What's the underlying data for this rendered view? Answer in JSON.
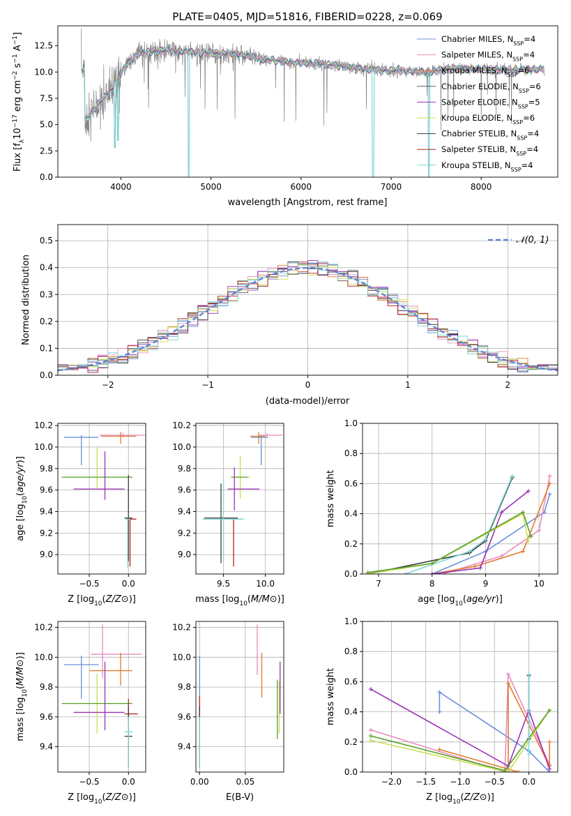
{
  "colors": {
    "chabrier_miles": "#6a8fdb",
    "salpeter_miles": "#e88bbd",
    "kroupa_miles": "#e07b2e",
    "chabrier_elodie": "#5c5c5c",
    "salpeter_elodie": "#9b2fb5",
    "kroupa_elodie": "#c8df52",
    "chabrier_stelib": "#3b3b3b",
    "salpeter_stelib": "#b0211d",
    "kroupa_stelib": "#7fd6d6",
    "data": "#7f7f7f",
    "normal": "#5b86d6",
    "green": "#5aa02c"
  },
  "chart_data": [
    {
      "id": "spectrum",
      "type": "line",
      "title": "PLATE=0405, MJD=51816, FIBERID=0228, z=0.069",
      "xlabel": "wavelength [Angstrom, rest frame]",
      "ylabel_parts": [
        "Flux [f",
        "λ",
        "10",
        "−17",
        " erg cm",
        "−2",
        " s",
        "−1",
        " A",
        "−1",
        "]"
      ],
      "xlim": [
        3300,
        8850
      ],
      "ylim": [
        0,
        14.4
      ],
      "xticks": [
        4000,
        5000,
        6000,
        7000,
        8000
      ],
      "yticks": [
        0.0,
        2.5,
        5.0,
        7.5,
        10.0,
        12.5
      ],
      "legend": [
        {
          "name": "Chabrier MILES, N",
          "sub": "SSP",
          "n": "=4",
          "color": "chabrier_miles"
        },
        {
          "name": "Salpeter MILES, N",
          "sub": "SSP",
          "n": "=4",
          "color": "salpeter_miles"
        },
        {
          "name": "Kroupa MILES, N",
          "sub": "SSP",
          "n": "=6",
          "color": "kroupa_miles"
        },
        {
          "name": "Chabrier ELODIE, N",
          "sub": "SSP",
          "n": "=6",
          "color": "chabrier_elodie"
        },
        {
          "name": "Salpeter ELODIE, N",
          "sub": "SSP",
          "n": "=5",
          "color": "salpeter_elodie"
        },
        {
          "name": "Kroupa ELODIE, N",
          "sub": "SSP",
          "n": "=6",
          "color": "kroupa_elodie"
        },
        {
          "name": "Chabrier STELIB, N",
          "sub": "SSP",
          "n": "=4",
          "color": "chabrier_stelib"
        },
        {
          "name": "Salpeter STELIB, N",
          "sub": "SSP",
          "n": "=4",
          "color": "salpeter_stelib"
        },
        {
          "name": "Kroupa STELIB, N",
          "sub": "SSP",
          "n": "=4",
          "color": "kroupa_stelib"
        }
      ],
      "continuum": [
        [
          3600,
          5.2
        ],
        [
          3700,
          6.5
        ],
        [
          3850,
          7.8
        ],
        [
          3950,
          9.0
        ],
        [
          4050,
          10.6
        ],
        [
          4200,
          11.8
        ],
        [
          4400,
          12.0
        ],
        [
          4600,
          12.0
        ],
        [
          4800,
          11.9
        ],
        [
          5000,
          11.8
        ],
        [
          5300,
          11.7
        ],
        [
          5600,
          11.2
        ],
        [
          5900,
          10.9
        ],
        [
          6200,
          10.8
        ],
        [
          6500,
          10.5
        ],
        [
          6800,
          10.2
        ],
        [
          7100,
          10.1
        ],
        [
          7400,
          10.0
        ],
        [
          7700,
          10.3
        ],
        [
          8000,
          10.3
        ],
        [
          8300,
          10.2
        ],
        [
          8700,
          10.3
        ]
      ],
      "dips": [
        [
          3933,
          2.8
        ],
        [
          3968,
          3.5
        ],
        [
          4750,
          0.0
        ],
        [
          6800,
          0.0
        ],
        [
          7420,
          0.0
        ]
      ]
    },
    {
      "id": "residuals",
      "type": "step",
      "xlabel": "(data-model)/error",
      "ylabel": "Normed distribution",
      "xlim": [
        -2.5,
        2.5
      ],
      "ylim": [
        0,
        0.56
      ],
      "xticks": [
        -2,
        -1,
        0,
        1,
        2
      ],
      "yticks": [
        0.0,
        0.1,
        0.2,
        0.3,
        0.4,
        0.5
      ],
      "legend_label": "𝒩(0, 1)"
    },
    {
      "id": "age_vs_z",
      "type": "errorbar",
      "xlabel": "Z [log10(Z/Z⊙)]",
      "ylabel": "age [log10(age/yr)]",
      "xlim": [
        -0.9,
        0.22
      ],
      "ylim": [
        8.82,
        10.22
      ],
      "xticks": [
        -0.5,
        0.0
      ],
      "yticks": [
        9.0,
        9.2,
        9.4,
        9.6,
        9.8,
        10.0,
        10.2
      ],
      "points": [
        {
          "c": "chabrier_miles",
          "x": -0.6,
          "xe": [
            0.22,
            0.22
          ],
          "y": 10.09,
          "ye": [
            0.26,
            0.02
          ]
        },
        {
          "c": "salpeter_miles",
          "x": -0.07,
          "xe": [
            0.3,
            0.28
          ],
          "y": 10.11,
          "ye": [
            0.02,
            0.02
          ]
        },
        {
          "c": "kroupa_miles",
          "x": -0.1,
          "xe": [
            0.25,
            0.2
          ],
          "y": 10.1,
          "ye": [
            0.07,
            0.04
          ]
        },
        {
          "c": "kroupa_elodie",
          "x": -0.4,
          "xe": [
            0.45,
            0.45
          ],
          "y": 9.72,
          "ye": [
            0.1,
            0.28
          ]
        },
        {
          "c": "green",
          "x": -0.4,
          "xe": [
            0.45,
            0.45
          ],
          "y": 9.72,
          "ye": [
            0.0,
            0.0
          ]
        },
        {
          "c": "salpeter_elodie",
          "x": -0.3,
          "xe": [
            0.4,
            0.25
          ],
          "y": 9.61,
          "ye": [
            0.1,
            0.35
          ]
        },
        {
          "c": "chabrier_stelib",
          "x": 0.0,
          "xe": [
            0.05,
            0.05
          ],
          "y": 9.34,
          "ye": [
            0.4,
            0.4
          ]
        },
        {
          "c": "salpeter_stelib",
          "x": 0.02,
          "xe": [
            0.05,
            0.08
          ],
          "y": 9.33,
          "ye": [
            0.44,
            0.0
          ]
        },
        {
          "c": "kroupa_stelib",
          "x": -0.01,
          "xe": [
            0.03,
            0.03
          ],
          "y": 9.33,
          "ye": [
            0.45,
            0.0
          ]
        }
      ]
    },
    {
      "id": "age_vs_mass",
      "type": "errorbar",
      "xlabel": "mass [log10(M/M⊙)]",
      "xlim": [
        9.17,
        10.22
      ],
      "ylim": [
        8.82,
        10.22
      ],
      "xticks": [
        9.5,
        10.0
      ],
      "yticks": [
        9.0,
        9.2,
        9.4,
        9.6,
        9.8,
        10.0,
        10.2
      ],
      "points": [
        {
          "c": "chabrier_miles",
          "x": 9.95,
          "xe": [
            0.12,
            0.08
          ],
          "y": 10.09,
          "ye": [
            0.26,
            0.02
          ]
        },
        {
          "c": "salpeter_miles",
          "x": 10.02,
          "xe": [
            0.1,
            0.18
          ],
          "y": 10.11,
          "ye": [
            0.02,
            0.02
          ]
        },
        {
          "c": "kroupa_miles",
          "x": 9.92,
          "xe": [
            0.1,
            0.08
          ],
          "y": 10.1,
          "ye": [
            0.07,
            0.04
          ]
        },
        {
          "c": "kroupa_elodie",
          "x": 9.7,
          "xe": [
            0.1,
            0.12
          ],
          "y": 9.72,
          "ye": [
            0.2,
            0.2
          ]
        },
        {
          "c": "green",
          "x": 9.69,
          "xe": [
            0.1,
            0.1
          ],
          "y": 9.72,
          "ye": [
            0.0,
            0.0
          ]
        },
        {
          "c": "salpeter_elodie",
          "x": 9.63,
          "xe": [
            0.08,
            0.3
          ],
          "y": 9.61,
          "ye": [
            0.2,
            0.2
          ]
        },
        {
          "c": "chabrier_stelib",
          "x": 9.47,
          "xe": [
            0.2,
            0.2
          ],
          "y": 9.34,
          "ye": [
            0.42,
            0.32
          ]
        },
        {
          "c": "salpeter_stelib",
          "x": 9.62,
          "xe": [
            0.15,
            0.1
          ],
          "y": 9.33,
          "ye": [
            0.44,
            0.0
          ]
        },
        {
          "c": "kroupa_stelib",
          "x": 9.5,
          "xe": [
            0.25,
            0.25
          ],
          "y": 9.33,
          "ye": [
            0.4,
            0.35
          ]
        }
      ]
    },
    {
      "id": "mw_vs_age",
      "type": "line",
      "xlabel": "age [log10(age/yr)]",
      "ylabel": "mass weight",
      "xlim": [
        6.7,
        10.35
      ],
      "ylim": [
        0,
        1.0
      ],
      "xticks": [
        7,
        8,
        9,
        10
      ],
      "yticks": [
        0.0,
        0.2,
        0.4,
        0.6,
        0.8,
        1.0
      ],
      "series": [
        {
          "c": "chabrier_stelib",
          "x": [
            6.8,
            8.7,
            9.0,
            9.5
          ],
          "y": [
            0.0,
            0.14,
            0.22,
            0.64
          ]
        },
        {
          "c": "kroupa_stelib",
          "x": [
            7.5,
            8.7,
            9.0,
            9.5
          ],
          "y": [
            0.0,
            0.15,
            0.23,
            0.65
          ]
        },
        {
          "c": "chabrier_miles",
          "x": [
            8.0,
            9.0,
            10.1,
            10.2
          ],
          "y": [
            0.0,
            0.15,
            0.41,
            0.53
          ]
        },
        {
          "c": "salpeter_miles",
          "x": [
            8.2,
            9.3,
            10.0,
            10.2
          ],
          "y": [
            0.0,
            0.12,
            0.29,
            0.65
          ]
        },
        {
          "c": "kroupa_miles",
          "x": [
            8.0,
            8.8,
            9.7,
            10.2
          ],
          "y": [
            0.0,
            0.05,
            0.15,
            0.6
          ]
        },
        {
          "c": "salpeter_elodie",
          "x": [
            8.0,
            8.9,
            9.3,
            9.8
          ],
          "y": [
            0.0,
            0.04,
            0.41,
            0.55
          ]
        },
        {
          "c": "kroupa_elodie",
          "x": [
            6.8,
            8.0,
            9.7,
            9.8
          ],
          "y": [
            0.0,
            0.07,
            0.4,
            0.22
          ]
        },
        {
          "c": "green",
          "x": [
            6.8,
            8.0,
            9.7,
            9.85
          ],
          "y": [
            0.01,
            0.07,
            0.41,
            0.25
          ]
        }
      ]
    },
    {
      "id": "mass_vs_z",
      "type": "errorbar",
      "xlabel": "Z [log10(Z/Z⊙)]",
      "ylabel": "mass [log10(M/M⊙)]",
      "xlim": [
        -0.9,
        0.22
      ],
      "ylim": [
        9.23,
        10.24
      ],
      "xticks": [
        -0.5,
        0.0
      ],
      "yticks": [
        9.4,
        9.6,
        9.8,
        10.0,
        10.2
      ],
      "points": [
        {
          "c": "chabrier_miles",
          "x": -0.6,
          "xe": [
            0.22,
            0.22
          ],
          "y": 9.95,
          "ye": [
            0.23,
            0.06
          ]
        },
        {
          "c": "salpeter_miles",
          "x": -0.33,
          "xe": [
            0.15,
            0.5
          ],
          "y": 10.02,
          "ye": [
            0.16,
            0.2
          ]
        },
        {
          "c": "kroupa_miles",
          "x": -0.1,
          "xe": [
            0.4,
            0.15
          ],
          "y": 9.91,
          "ye": [
            0.1,
            0.12
          ]
        },
        {
          "c": "kroupa_elodie",
          "x": -0.4,
          "xe": [
            0.45,
            0.45
          ],
          "y": 9.69,
          "ye": [
            0.2,
            0.2
          ]
        },
        {
          "c": "green",
          "x": -0.4,
          "xe": [
            0.45,
            0.45
          ],
          "y": 9.69,
          "ye": [
            0.0,
            0.0
          ]
        },
        {
          "c": "salpeter_elodie",
          "x": -0.3,
          "xe": [
            0.4,
            0.25
          ],
          "y": 9.63,
          "ye": [
            0.12,
            0.34
          ]
        },
        {
          "c": "salpeter_stelib",
          "x": 0.0,
          "xe": [
            0.05,
            0.12
          ],
          "y": 9.62,
          "ye": [
            0.36,
            0.1
          ]
        },
        {
          "c": "chabrier_stelib",
          "x": 0.0,
          "xe": [
            0.05,
            0.05
          ],
          "y": 9.47,
          "ye": [
            0.2,
            0.2
          ]
        },
        {
          "c": "kroupa_stelib",
          "x": 0.0,
          "xe": [
            0.05,
            0.05
          ],
          "y": 9.5,
          "ye": [
            0.24,
            0.1
          ]
        }
      ]
    },
    {
      "id": "mass_vs_ebv",
      "type": "errorbar",
      "xlabel": "E(B-V)",
      "xlim": [
        -0.004,
        0.092
      ],
      "ylim": [
        9.23,
        10.24
      ],
      "xticks": [
        0.0,
        0.05
      ],
      "yticks": [
        9.4,
        9.6,
        9.8,
        10.0,
        10.2
      ],
      "points": [
        {
          "c": "chabrier_miles",
          "x": 0.0,
          "xe": [
            0,
            0
          ],
          "y": 9.95,
          "ye": [
            0.23,
            0.06
          ]
        },
        {
          "c": "salpeter_miles",
          "x": 0.063,
          "xe": [
            0,
            0
          ],
          "y": 10.02,
          "ye": [
            0.14,
            0.2
          ]
        },
        {
          "c": "kroupa_miles",
          "x": 0.068,
          "xe": [
            0,
            0
          ],
          "y": 9.91,
          "ye": [
            0.18,
            0.12
          ]
        },
        {
          "c": "kroupa_elodie",
          "x": 0.087,
          "xe": [
            0,
            0
          ],
          "y": 9.69,
          "ye": [
            0.2,
            0.15
          ]
        },
        {
          "c": "salpeter_elodie",
          "x": 0.088,
          "xe": [
            0,
            0
          ],
          "y": 9.82,
          "ye": [
            0.2,
            0.15
          ]
        },
        {
          "c": "green",
          "x": 0.085,
          "xe": [
            0,
            0
          ],
          "y": 9.65,
          "ye": [
            0.2,
            0.2
          ]
        },
        {
          "c": "salpeter_stelib",
          "x": 0.0,
          "xe": [
            0,
            0
          ],
          "y": 9.62,
          "ye": [
            0.36,
            0.12
          ]
        },
        {
          "c": "chabrier_stelib",
          "x": 0.0,
          "xe": [
            0,
            0
          ],
          "y": 9.47,
          "ye": [
            0.2,
            0.2
          ]
        },
        {
          "c": "kroupa_stelib",
          "x": 0.0,
          "xe": [
            0,
            0
          ],
          "y": 9.5,
          "ye": [
            0.24,
            0.1
          ]
        }
      ]
    },
    {
      "id": "mw_vs_z",
      "type": "line",
      "xlabel": "Z [log10(Z/Z⊙)]",
      "ylabel": "mass weight",
      "xlim": [
        -2.42,
        0.42
      ],
      "ylim": [
        0,
        1.0
      ],
      "xticks": [
        -2.0,
        -1.5,
        -1.0,
        -0.5,
        0.0
      ],
      "yticks": [
        0.0,
        0.2,
        0.4,
        0.6,
        0.8,
        1.0
      ],
      "series": [
        {
          "c": "chabrier_miles",
          "x": [
            -1.3,
            -1.3,
            0.0,
            0.3
          ],
          "y": [
            0.4,
            0.53,
            0.14,
            0.0
          ]
        },
        {
          "c": "salpeter_miles",
          "x": [
            -2.3,
            -0.35,
            -0.3,
            0.3
          ],
          "y": [
            0.28,
            0.0,
            0.65,
            0.05
          ]
        },
        {
          "c": "kroupa_miles",
          "x": [
            -1.3,
            -0.15,
            -0.3,
            -0.3,
            0.3,
            0.3
          ],
          "y": [
            0.15,
            0.0,
            0.0,
            0.59,
            0.04,
            0.2
          ]
        },
        {
          "c": "salpeter_elodie",
          "x": [
            -2.3,
            -0.3,
            0.0,
            0.3
          ],
          "y": [
            0.55,
            0.04,
            0.41,
            0.02
          ]
        },
        {
          "c": "kroupa_elodie",
          "x": [
            -2.3,
            -0.3,
            0.3
          ],
          "y": [
            0.21,
            0.0,
            0.41
          ]
        },
        {
          "c": "green",
          "x": [
            -2.3,
            -0.35,
            0.3
          ],
          "y": [
            0.24,
            0.01,
            0.41
          ]
        },
        {
          "c": "chabrier_stelib",
          "x": [
            0.0,
            0.0
          ],
          "y": [
            0.22,
            0.64
          ]
        },
        {
          "c": "kroupa_stelib",
          "x": [
            0.0,
            0.0
          ],
          "y": [
            0.12,
            0.65
          ]
        }
      ]
    }
  ]
}
